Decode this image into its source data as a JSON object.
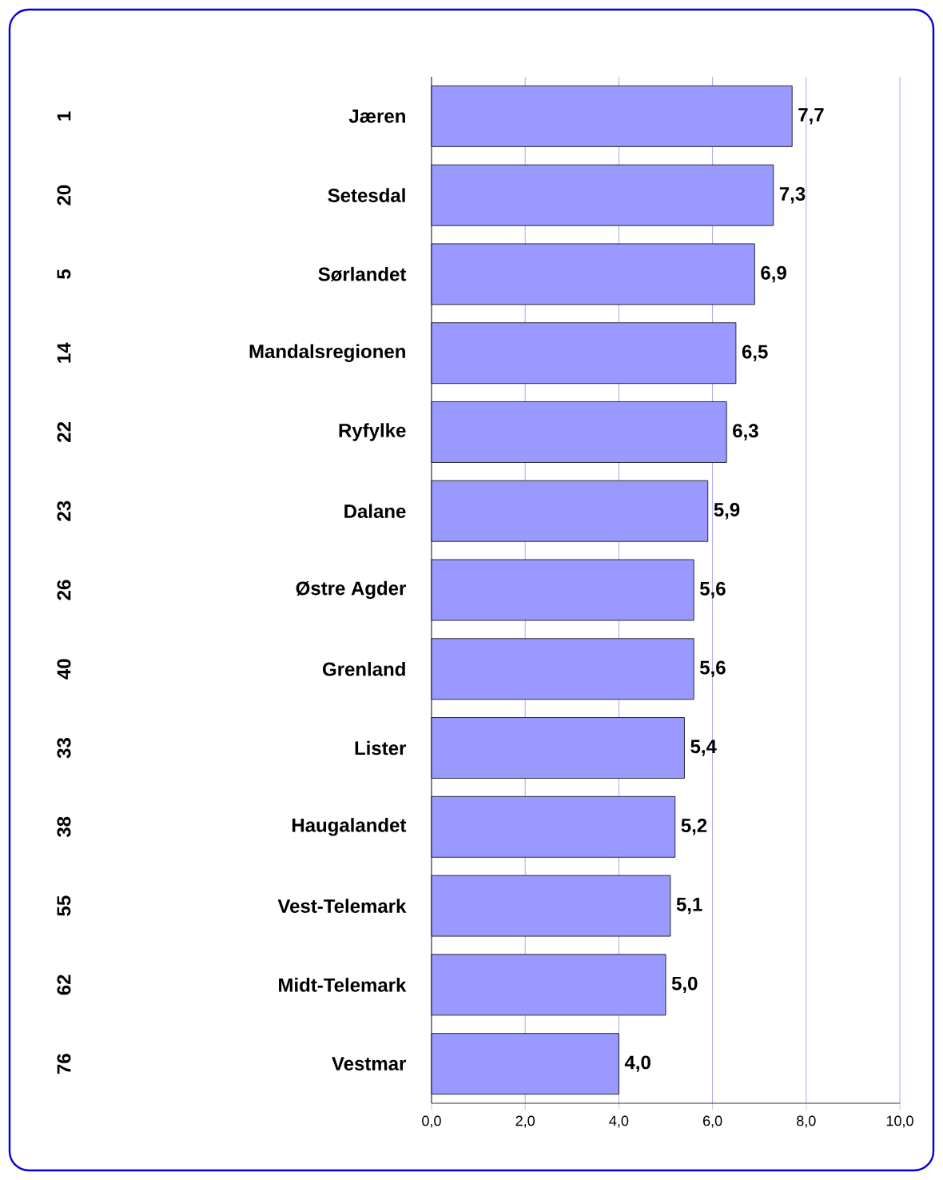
{
  "chart_data": {
    "type": "bar",
    "orientation": "horizontal",
    "categories": [
      "Jæren",
      "Setesdal",
      "Sørlandet",
      "Mandalsregionen",
      "Ryfylke",
      "Dalane",
      "Østre Agder",
      "Grenland",
      "Lister",
      "Haugalandet",
      "Vest-Telemark",
      "Midt-Telemark",
      "Vestmar"
    ],
    "values": [
      7.7,
      7.3,
      6.9,
      6.5,
      6.3,
      5.9,
      5.6,
      5.6,
      5.4,
      5.2,
      5.1,
      5.0,
      4.0
    ],
    "value_labels": [
      "7,7",
      "7,3",
      "6,9",
      "6,5",
      "6,3",
      "5,9",
      "5,6",
      "5,6",
      "5,4",
      "5,2",
      "5,1",
      "5,0",
      "4,0"
    ],
    "color": "#9999ff",
    "xlim": [
      0,
      10
    ],
    "xticks": [
      {
        "value": 0,
        "label": "0,0"
      },
      {
        "value": 2,
        "label": "2,0"
      },
      {
        "value": 4,
        "label": "4,0"
      },
      {
        "value": 6,
        "label": "6,0"
      },
      {
        "value": 8,
        "label": "8,0"
      },
      {
        "value": 10,
        "label": "10,0"
      }
    ],
    "grid": "x",
    "annotations": [
      "1",
      "20",
      "5",
      "14",
      "22",
      "23",
      "26",
      "40",
      "33",
      "38",
      "55",
      "62",
      "76"
    ]
  }
}
